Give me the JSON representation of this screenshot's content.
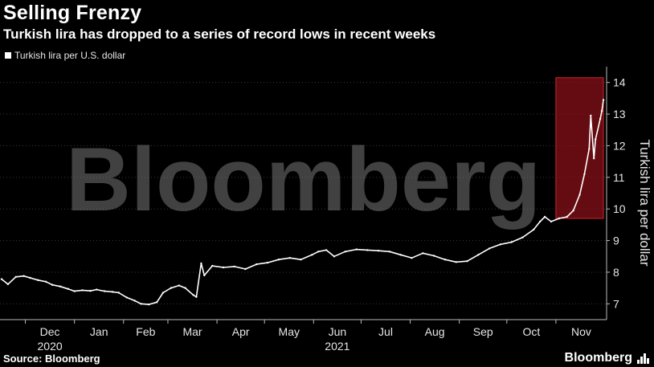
{
  "header": {
    "title": "Selling Frenzy",
    "subtitle": "Turkish lira has dropped to a series of record lows in recent weeks"
  },
  "footer": {
    "source": "Source: Bloomberg",
    "brand": "Bloomberg"
  },
  "watermark": "Bloomberg",
  "colors": {
    "background": "#000000",
    "series": "#ffffff",
    "highlight_fill": "#8b1019",
    "highlight_edge": "#d2232a",
    "grid": "#3a3a3a"
  },
  "chart_data": {
    "type": "line",
    "legend": {
      "label": "Turkish lira per U.S. dollar",
      "position": "top-left"
    },
    "ylabel": "Turkish lira per dollar",
    "xlabel": "",
    "ylim": [
      6.5,
      14.5
    ],
    "y_ticks": [
      7,
      8,
      9,
      10,
      11,
      12,
      13,
      14
    ],
    "y_axis_side": "right",
    "grid": "horizontal dotted",
    "x_tick_labels": [
      {
        "label": "Dec",
        "sub": "2020",
        "date": "2020-12-01"
      },
      {
        "label": "Jan",
        "sub": "",
        "date": "2021-01-01"
      },
      {
        "label": "Feb",
        "sub": "",
        "date": "2021-02-01"
      },
      {
        "label": "Mar",
        "sub": "",
        "date": "2021-03-01"
      },
      {
        "label": "Apr",
        "sub": "",
        "date": "2021-04-01"
      },
      {
        "label": "May",
        "sub": "",
        "date": "2021-05-01"
      },
      {
        "label": "Jun",
        "sub": "2021",
        "date": "2021-06-01"
      },
      {
        "label": "Jul",
        "sub": "",
        "date": "2021-07-01"
      },
      {
        "label": "Aug",
        "sub": "",
        "date": "2021-08-01"
      },
      {
        "label": "Sep",
        "sub": "",
        "date": "2021-09-01"
      },
      {
        "label": "Oct",
        "sub": "",
        "date": "2021-10-01"
      },
      {
        "label": "Nov",
        "sub": "",
        "date": "2021-11-01"
      }
    ],
    "x_range": [
      "2020-11-15",
      "2021-12-03"
    ],
    "highlight": {
      "x": [
        "2021-11-01",
        "2021-12-01"
      ],
      "y": [
        9.7,
        14.15
      ]
    },
    "series": [
      {
        "name": "Turkish lira per U.S. dollar",
        "points": [
          [
            "2020-11-16",
            7.78
          ],
          [
            "2020-11-20",
            7.62
          ],
          [
            "2020-11-25",
            7.85
          ],
          [
            "2020-11-30",
            7.88
          ],
          [
            "2020-12-04",
            7.82
          ],
          [
            "2020-12-09",
            7.75
          ],
          [
            "2020-12-14",
            7.7
          ],
          [
            "2020-12-18",
            7.6
          ],
          [
            "2020-12-23",
            7.55
          ],
          [
            "2020-12-28",
            7.47
          ],
          [
            "2021-01-01",
            7.4
          ],
          [
            "2021-01-06",
            7.43
          ],
          [
            "2021-01-11",
            7.41
          ],
          [
            "2021-01-15",
            7.45
          ],
          [
            "2021-01-20",
            7.4
          ],
          [
            "2021-01-25",
            7.38
          ],
          [
            "2021-01-29",
            7.35
          ],
          [
            "2021-02-03",
            7.2
          ],
          [
            "2021-02-08",
            7.1
          ],
          [
            "2021-02-12",
            7.0
          ],
          [
            "2021-02-17",
            6.98
          ],
          [
            "2021-02-22",
            7.05
          ],
          [
            "2021-02-26",
            7.35
          ],
          [
            "2021-03-03",
            7.5
          ],
          [
            "2021-03-08",
            7.58
          ],
          [
            "2021-03-12",
            7.5
          ],
          [
            "2021-03-17",
            7.28
          ],
          [
            "2021-03-19",
            7.22
          ],
          [
            "2021-03-22",
            8.28
          ],
          [
            "2021-03-24",
            7.9
          ],
          [
            "2021-03-29",
            8.2
          ],
          [
            "2021-04-05",
            8.15
          ],
          [
            "2021-04-12",
            8.18
          ],
          [
            "2021-04-19",
            8.1
          ],
          [
            "2021-04-26",
            8.25
          ],
          [
            "2021-05-03",
            8.3
          ],
          [
            "2021-05-10",
            8.4
          ],
          [
            "2021-05-17",
            8.45
          ],
          [
            "2021-05-24",
            8.4
          ],
          [
            "2021-05-31",
            8.55
          ],
          [
            "2021-06-04",
            8.65
          ],
          [
            "2021-06-09",
            8.7
          ],
          [
            "2021-06-14",
            8.5
          ],
          [
            "2021-06-21",
            8.65
          ],
          [
            "2021-06-28",
            8.72
          ],
          [
            "2021-07-05",
            8.7
          ],
          [
            "2021-07-12",
            8.68
          ],
          [
            "2021-07-19",
            8.65
          ],
          [
            "2021-07-26",
            8.55
          ],
          [
            "2021-08-02",
            8.45
          ],
          [
            "2021-08-09",
            8.6
          ],
          [
            "2021-08-16",
            8.52
          ],
          [
            "2021-08-23",
            8.4
          ],
          [
            "2021-08-30",
            8.32
          ],
          [
            "2021-09-06",
            8.35
          ],
          [
            "2021-09-13",
            8.55
          ],
          [
            "2021-09-20",
            8.75
          ],
          [
            "2021-09-27",
            8.88
          ],
          [
            "2021-10-04",
            8.95
          ],
          [
            "2021-10-11",
            9.1
          ],
          [
            "2021-10-18",
            9.35
          ],
          [
            "2021-10-22",
            9.6
          ],
          [
            "2021-10-25",
            9.75
          ],
          [
            "2021-10-29",
            9.6
          ],
          [
            "2021-11-03",
            9.7
          ],
          [
            "2021-11-08",
            9.75
          ],
          [
            "2021-11-12",
            9.95
          ],
          [
            "2021-11-16",
            10.45
          ],
          [
            "2021-11-19",
            11.1
          ],
          [
            "2021-11-22",
            11.9
          ],
          [
            "2021-11-23",
            12.95
          ],
          [
            "2021-11-25",
            11.6
          ],
          [
            "2021-11-26",
            12.2
          ],
          [
            "2021-11-29",
            12.85
          ],
          [
            "2021-11-30",
            13.1
          ],
          [
            "2021-12-01",
            13.45
          ]
        ]
      }
    ]
  }
}
